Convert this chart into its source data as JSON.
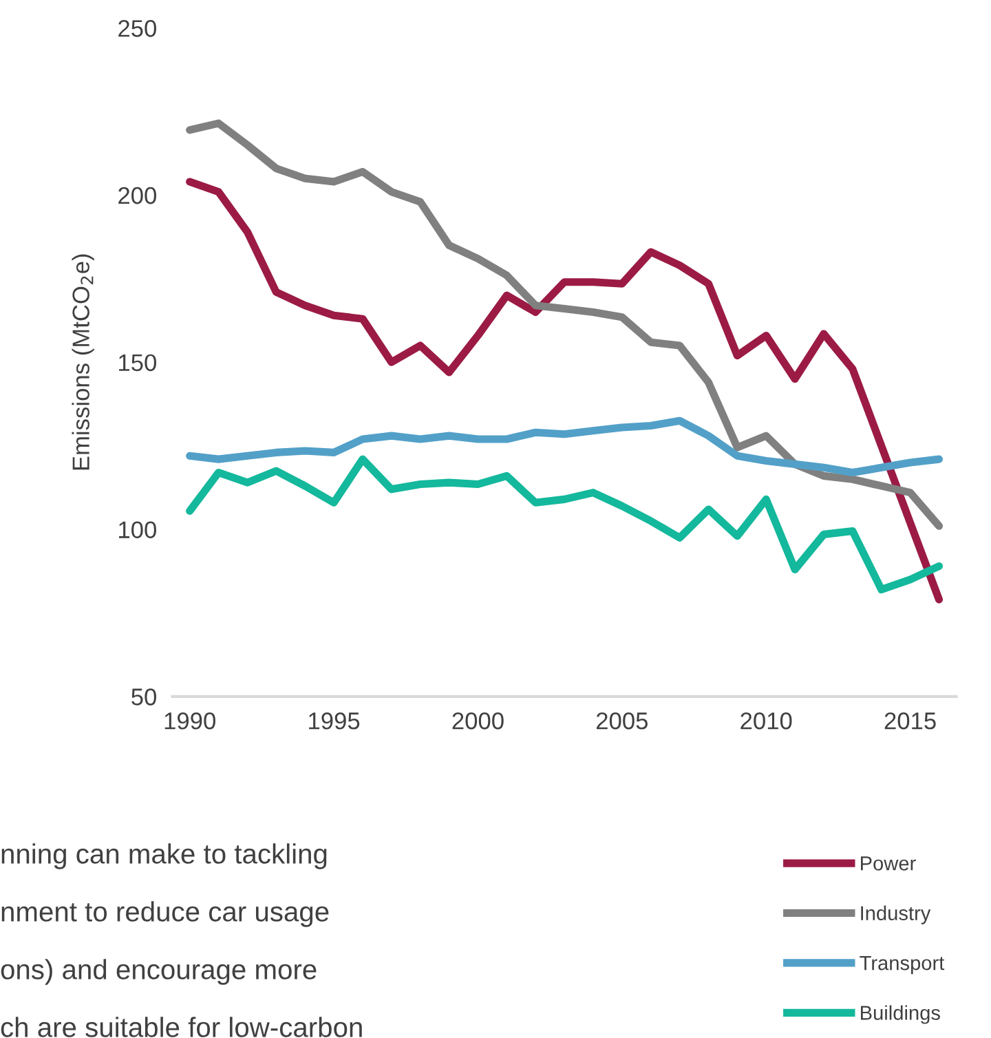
{
  "chart_data": {
    "type": "line",
    "ylabel": "Emissions (MtCO$_{2}$e)",
    "x": [
      1990,
      1991,
      1992,
      1993,
      1994,
      1995,
      1996,
      1997,
      1998,
      1999,
      2000,
      2001,
      2002,
      2003,
      2004,
      2005,
      2006,
      2007,
      2008,
      2009,
      2010,
      2011,
      2012,
      2013,
      2014,
      2015,
      2016
    ],
    "series": [
      {
        "name": "Power",
        "color": "#9b1b45",
        "values": [
          204,
          201,
          189,
          171,
          167,
          164,
          163,
          150,
          155,
          147,
          158,
          170,
          165,
          174,
          174,
          173.5,
          183,
          179,
          173.5,
          152,
          158,
          145,
          158.5,
          148,
          125,
          102,
          79
        ]
      },
      {
        "name": "Industry",
        "color": "#808080",
        "values": [
          219.5,
          221.5,
          215,
          208,
          205,
          204,
          207,
          201,
          198,
          185,
          181,
          176,
          167,
          166,
          165,
          163.5,
          156,
          155,
          144,
          124.5,
          128,
          119.5,
          116,
          115,
          113,
          111,
          101
        ]
      },
      {
        "name": "Transport",
        "color": "#52a0c8",
        "values": [
          122,
          121,
          122,
          123,
          123.5,
          123,
          127,
          128,
          127,
          128,
          127,
          127,
          129,
          128.5,
          129.5,
          130.5,
          131,
          132.5,
          128,
          122,
          120.5,
          119.5,
          118.5,
          117,
          118.5,
          120,
          121
        ]
      },
      {
        "name": "Buildings",
        "color": "#14b89c",
        "values": [
          105.5,
          117,
          114,
          117.5,
          113,
          108,
          121,
          112,
          113.5,
          114,
          113.5,
          116,
          108,
          109,
          111,
          107,
          102.5,
          97.5,
          106,
          98,
          109,
          88,
          98.5,
          99.5,
          82,
          85,
          89
        ]
      }
    ],
    "xlim": [
      1989.4,
      2016.6
    ],
    "ylim": [
      50,
      250
    ],
    "xticks": [
      1990,
      1995,
      2000,
      2005,
      2010,
      2015
    ],
    "yticks": [
      50,
      100,
      150,
      200,
      250
    ],
    "grid": false,
    "legend": "bottom right",
    "marker": "none",
    "line_style": "solid",
    "annotations": [
      "nning can make to tackling",
      "nment to reduce car usage",
      "ons) and encourage more",
      "ch are suitable for low-carbon"
    ]
  }
}
